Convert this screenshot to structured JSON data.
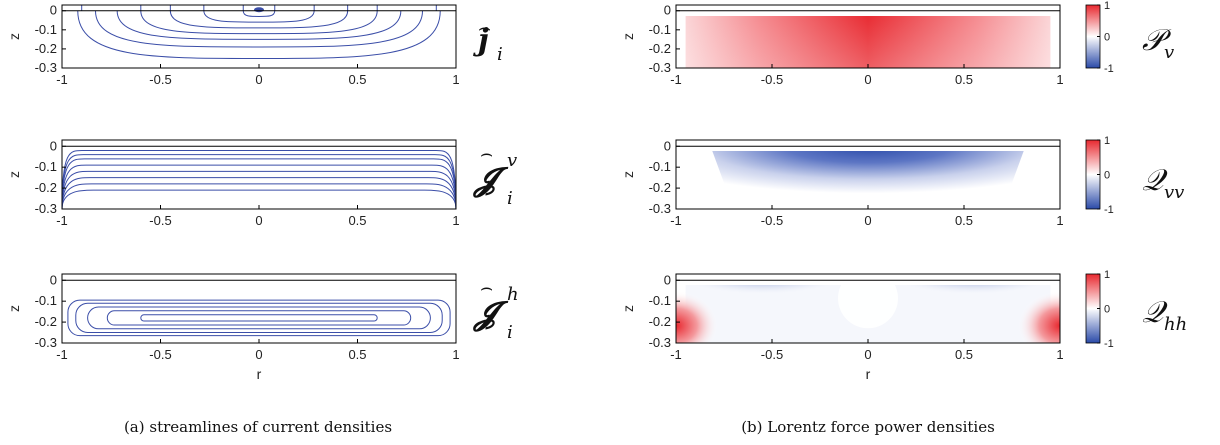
{
  "captions": {
    "a": "(a) streamlines of current densities",
    "b": "(b) Lorentz force power densities"
  },
  "panel_symbols": {
    "left": [
      {
        "main": "j",
        "sub": "i",
        "sup": ""
      },
      {
        "main": "𝓙",
        "sub": "i",
        "sup": "v"
      },
      {
        "main": "𝓙",
        "sub": "i",
        "sup": "h"
      }
    ],
    "right": [
      {
        "main": "𝒫",
        "sub": "v"
      },
      {
        "main": "𝒬",
        "sub": "vv"
      },
      {
        "main": "𝒬",
        "sub": "hh"
      }
    ]
  },
  "colors": {
    "streamline": "#3b4ea8",
    "positive": "#e8282f",
    "negative": "#2a4aa8",
    "neutral": "#ffffff"
  },
  "chart_data": [
    {
      "type": "line",
      "kind": "streamlines",
      "field": "j_i",
      "xlabel": "",
      "ylabel": "z",
      "xlim": [
        -1,
        1
      ],
      "ylim": [
        -0.3,
        0.03
      ],
      "xticks": [
        "-1",
        "-0.5",
        "0",
        "0.5",
        "1"
      ],
      "yticks": [
        "0",
        "-0.1",
        "-0.2",
        "-0.3"
      ],
      "pattern": "nested U-shaped loops from the surface",
      "depths": [
        -0.03,
        -0.06,
        -0.09,
        -0.12,
        -0.15,
        -0.19,
        -0.25
      ],
      "half_widths": [
        0.08,
        0.28,
        0.45,
        0.6,
        0.72,
        0.83,
        0.92
      ]
    },
    {
      "type": "line",
      "kind": "streamlines",
      "field": "J_i^v",
      "xlabel": "",
      "ylabel": "z",
      "xlim": [
        -1,
        1
      ],
      "ylim": [
        -0.3,
        0.03
      ],
      "xticks": [
        "-1",
        "-0.5",
        "0",
        "0.5",
        "1"
      ],
      "yticks": [
        "0",
        "-0.1",
        "-0.2",
        "-0.3"
      ],
      "pattern": "horizontal streamlines bending to bottom corners",
      "levels": [
        -0.02,
        -0.04,
        -0.06,
        -0.09,
        -0.12,
        -0.15,
        -0.18,
        -0.21
      ]
    },
    {
      "type": "line",
      "kind": "streamlines",
      "field": "J_i^h",
      "xlabel": "r",
      "ylabel": "z",
      "xlim": [
        -1,
        1
      ],
      "ylim": [
        -0.3,
        0.03
      ],
      "xticks": [
        "-1",
        "-0.5",
        "0",
        "0.5",
        "1"
      ],
      "yticks": [
        "0",
        "-0.1",
        "-0.2",
        "-0.3"
      ],
      "pattern": "nested closed loops centred at z = -0.18",
      "loops": [
        {
          "halfwidth": 0.97,
          "halfheight": 0.085
        },
        {
          "halfwidth": 0.93,
          "halfheight": 0.07
        },
        {
          "halfwidth": 0.87,
          "halfheight": 0.052
        },
        {
          "halfwidth": 0.77,
          "halfheight": 0.034
        },
        {
          "halfwidth": 0.6,
          "halfheight": 0.015
        }
      ]
    },
    {
      "type": "heatmap",
      "field": "P_v",
      "xlabel": "",
      "ylabel": "z",
      "xlim": [
        -1,
        1
      ],
      "ylim": [
        -0.3,
        0.03
      ],
      "xticks": [
        "-1",
        "-0.5",
        "0",
        "0.5",
        "1"
      ],
      "yticks": [
        "0",
        "-0.1",
        "-0.2",
        "-0.3"
      ],
      "colorbar": {
        "ticks": [
          "1",
          "0",
          "-1"
        ],
        "range": [
          -1,
          1
        ]
      },
      "description": "positive (red) everywhere, maximum near r=0 at the surface, fading towards r=±1"
    },
    {
      "type": "heatmap",
      "field": "Q_vv",
      "xlabel": "",
      "ylabel": "z",
      "xlim": [
        -1,
        1
      ],
      "ylim": [
        -0.3,
        0.03
      ],
      "xticks": [
        "-1",
        "-0.5",
        "0",
        "0.5",
        "1"
      ],
      "yticks": [
        "0",
        "-0.1",
        "-0.2",
        "-0.3"
      ],
      "colorbar": {
        "ticks": [
          "1",
          "0",
          "-1"
        ],
        "range": [
          -1,
          1
        ]
      },
      "description": "negative (blue) in a funnel region below the surface, near zero at the sides"
    },
    {
      "type": "heatmap",
      "field": "Q_hh",
      "xlabel": "r",
      "ylabel": "z",
      "xlim": [
        -1,
        1
      ],
      "ylim": [
        -0.3,
        0.03
      ],
      "xticks": [
        "-1",
        "-0.5",
        "0",
        "0.5",
        "1"
      ],
      "yticks": [
        "0",
        "-0.1",
        "-0.2",
        "-0.3"
      ],
      "colorbar": {
        "ticks": [
          "1",
          "0",
          "-1"
        ],
        "range": [
          -1,
          1
        ]
      },
      "description": "negative (blue) bands near the surface around r=±0.7, positive (red) lobes at the lower corners r=±1"
    }
  ]
}
